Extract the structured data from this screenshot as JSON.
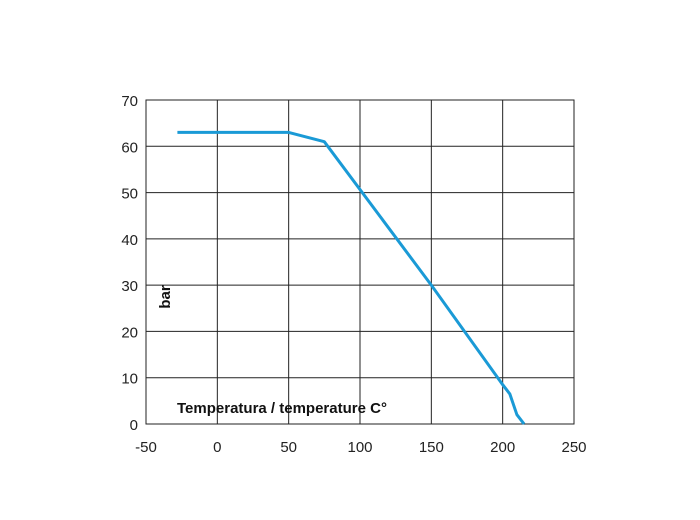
{
  "chart_data": {
    "type": "line",
    "title": "",
    "xlabel": "Temperatura / temperature C°",
    "ylabel": "bar",
    "xlim": [
      -50,
      250
    ],
    "ylim": [
      0,
      70
    ],
    "x_ticks": [
      "-50",
      "0",
      "50",
      "100",
      "150",
      "200",
      "250"
    ],
    "y_ticks": [
      "0",
      "10",
      "20",
      "30",
      "40",
      "50",
      "60",
      "70"
    ],
    "grid": true,
    "line_color": "#1a9ad6",
    "series": [
      {
        "x": [
          -28,
          50,
          75,
          150,
          200,
          205,
          210,
          215
        ],
        "y": [
          63,
          63,
          61,
          30,
          8.5,
          6.5,
          2,
          0
        ]
      }
    ]
  }
}
